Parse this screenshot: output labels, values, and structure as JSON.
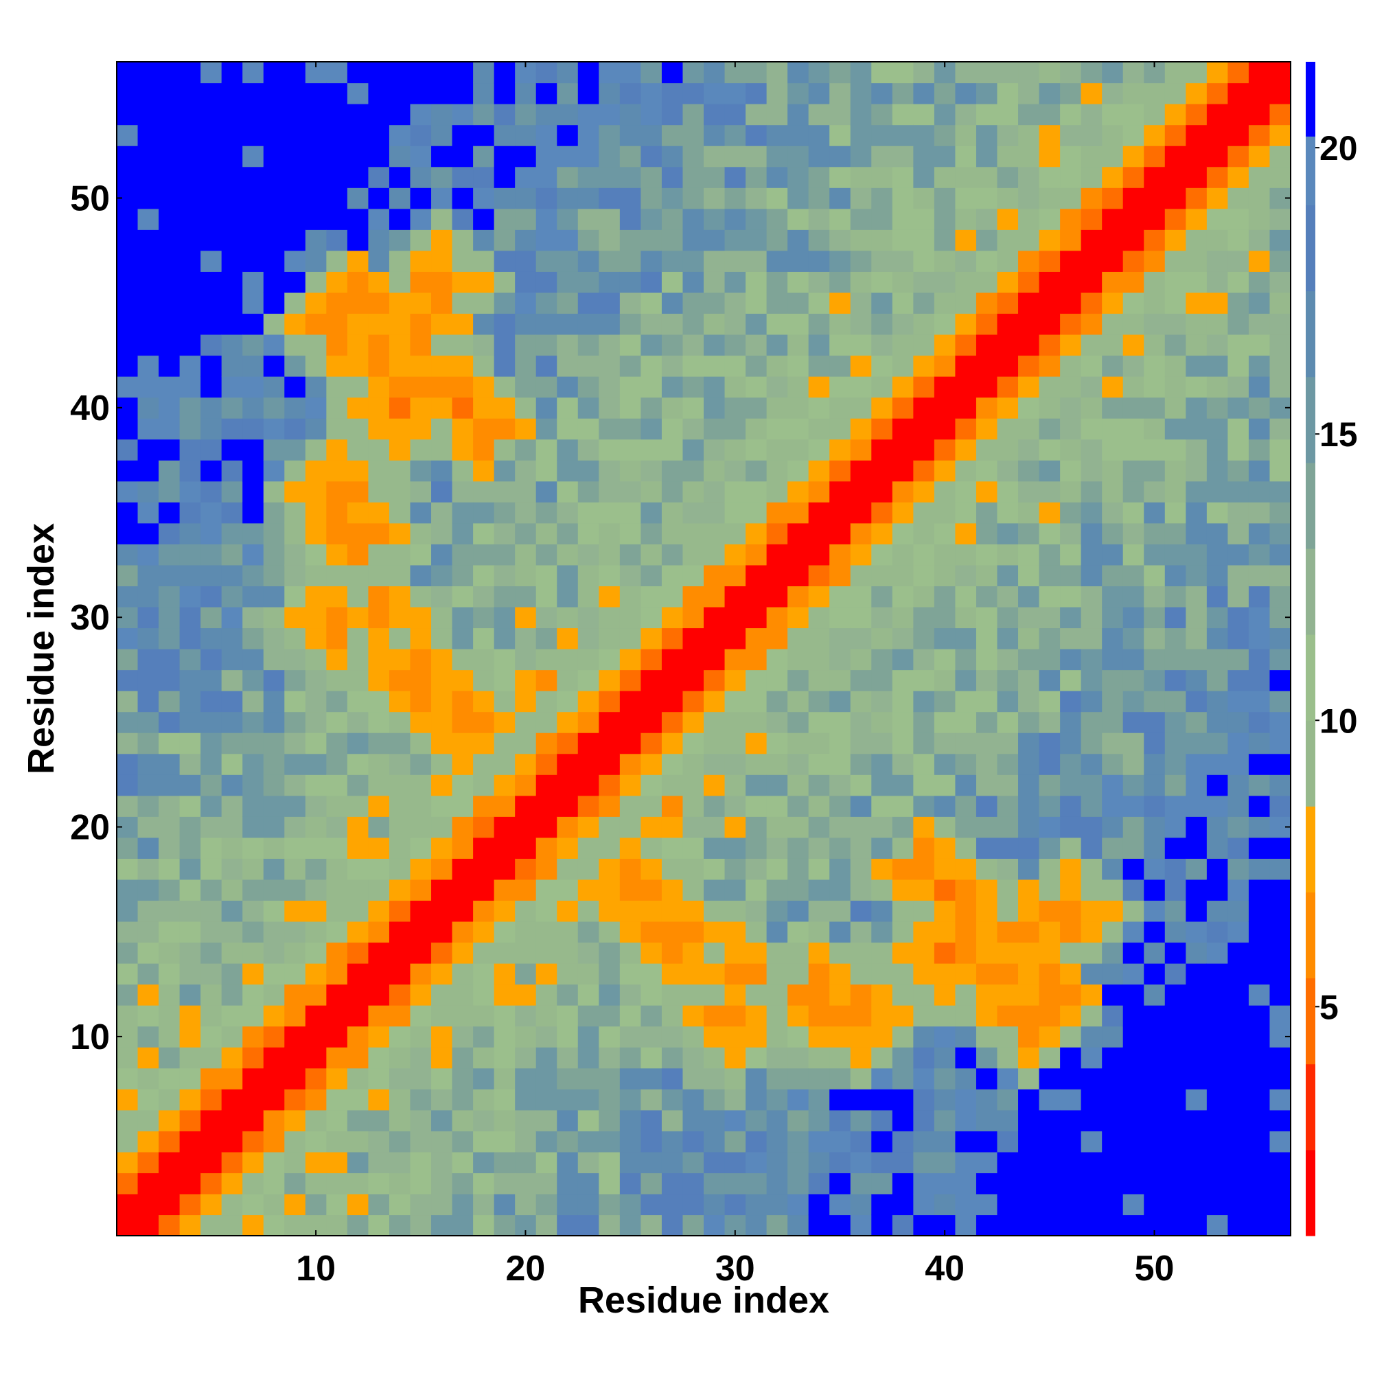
{
  "chart_data": {
    "type": "heatmap",
    "title": "",
    "xlabel": "Residue index",
    "ylabel": "Residue index",
    "n_residues": 56,
    "x_range": [
      1,
      56
    ],
    "y_range": [
      1,
      56
    ],
    "xticks": [
      10,
      20,
      30,
      40,
      50
    ],
    "yticks": [
      10,
      20,
      30,
      40,
      50
    ],
    "colorbar": {
      "range": [
        1,
        21.5
      ],
      "ticks": [
        5,
        10,
        15,
        20
      ],
      "boundaries": [
        1,
        2.5,
        4,
        5.5,
        7,
        8.5,
        10,
        11.5,
        13,
        14.5,
        16,
        17.5,
        19,
        20.2,
        21.5
      ],
      "colors": [
        "#ff0000",
        "#ff2a00",
        "#ff6e00",
        "#ff8c00",
        "#ffa500",
        "#97b98c",
        "#9bbf8c",
        "#92b391",
        "#7fa497",
        "#6d98a3",
        "#5d8bb0",
        "#557fbb",
        "#5a88bc",
        "#0000ff"
      ]
    },
    "value_description": "Inter-residue distance map; diagonal band near 1-4, strong off-diagonal contacts (5-8) between residues 10-20 / 35-45 and 14-18 / 40-46, distances above 20 shown in blue",
    "grid": false
  },
  "axes": {
    "x_label": "Residue index",
    "y_label": "Residue index"
  }
}
